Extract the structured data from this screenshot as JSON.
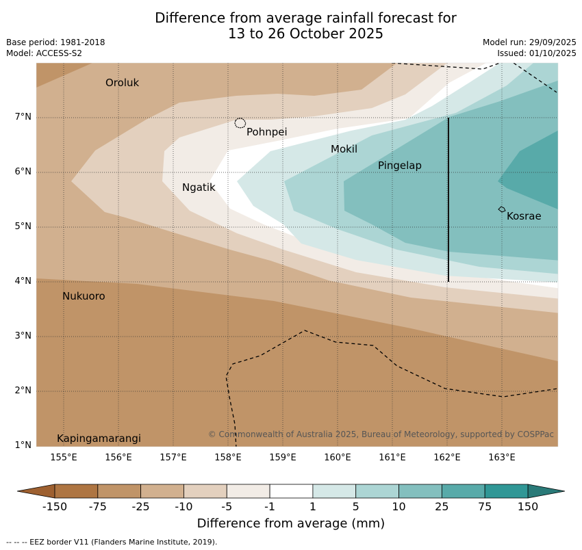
{
  "header": {
    "title_line1": "Difference from average rainfall forecast for",
    "title_line2": "13 to 26 October 2025",
    "base_period": "Base period: 1981-2018",
    "model": "Model: ACCESS-S2",
    "model_run": "Model run: 29/09/2025",
    "issued": "Issued: 01/10/2025"
  },
  "map": {
    "lon_ticks": [
      "155°E",
      "156°E",
      "157°E",
      "158°E",
      "159°E",
      "160°E",
      "161°E",
      "162°E",
      "163°E"
    ],
    "lat_ticks": [
      "7°N",
      "6°N",
      "5°N",
      "4°N",
      "3°N",
      "2°N",
      "1°N"
    ],
    "places": [
      "Oroluk",
      "Pohnpei",
      "Mokil",
      "Pingelap",
      "Ngatik",
      "Kosrae",
      "Nukuoro",
      "Kapingamarangi"
    ],
    "copyright": "© Commonwealth of Australia 2025, Bureau of Meteorology, supported by COSPPac"
  },
  "colorbar": {
    "levels": [
      "-150",
      "-75",
      "-25",
      "-10",
      "-5",
      "-1",
      "1",
      "5",
      "10",
      "25",
      "75",
      "150"
    ],
    "colors": [
      "#ae7542",
      "#c09468",
      "#d1b08f",
      "#e3d0be",
      "#f2ece6",
      "#ffffff",
      "#d5e8e7",
      "#acd5d4",
      "#83bfbe",
      "#58aaa9",
      "#309796"
    ],
    "under_color": "#9e6030",
    "over_color": "#2a7a78",
    "label": "Difference from average (mm)"
  },
  "footer": "--  --  -- EEZ border V11 (Flanders Marine Institute, 2019)."
}
